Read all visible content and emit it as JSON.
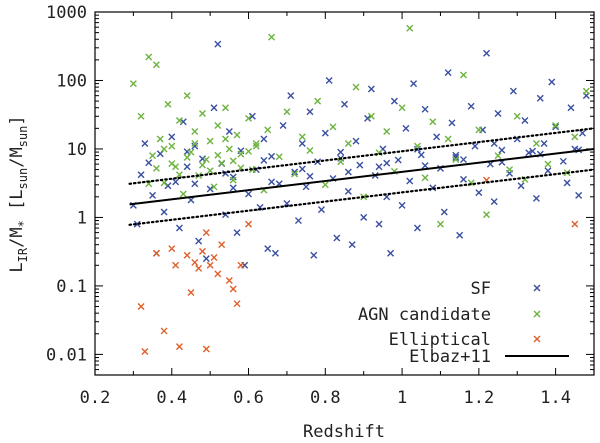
{
  "chart_data": {
    "type": "scatter",
    "title": "",
    "xlabel": "Redshift",
    "ylabel": "L_IR/M_* [L_sun/M_sun]",
    "ylabel_parts": {
      "L": "L",
      "IR": "IR",
      "slash_M": "/M",
      "star": "*",
      "units_open": "[L",
      "sun1": "sun",
      "units_mid": "/M",
      "sun2": "sun",
      "units_close": "]"
    },
    "xlim": [
      0.2,
      1.5
    ],
    "ylim": [
      0.005,
      1000
    ],
    "yscale": "log",
    "xticks": [
      0.2,
      0.4,
      0.6,
      0.8,
      1,
      1.2,
      1.4
    ],
    "xtick_labels": [
      "0.2",
      "0.4",
      "0.6",
      "0.8",
      "1",
      "1.2",
      "1.4"
    ],
    "yticks": [
      0.01,
      0.1,
      1,
      10,
      100,
      1000
    ],
    "ytick_labels": [
      "0.01",
      "0.1",
      "1",
      "10",
      "100",
      "1000"
    ],
    "grid": false,
    "legend_position": "bottom-right",
    "series": [
      {
        "name": "SF",
        "color": "#3a4fa0",
        "marker": "x",
        "data": [
          [
            0.32,
            4.2
          ],
          [
            0.35,
            2.1
          ],
          [
            0.37,
            8.5
          ],
          [
            0.38,
            1.2
          ],
          [
            0.4,
            15
          ],
          [
            0.41,
            3.3
          ],
          [
            0.42,
            0.7
          ],
          [
            0.43,
            25
          ],
          [
            0.44,
            5.5
          ],
          [
            0.45,
            1.8
          ],
          [
            0.46,
            11
          ],
          [
            0.47,
            0.45
          ],
          [
            0.48,
            7.2
          ],
          [
            0.5,
            2.6
          ],
          [
            0.51,
            40
          ],
          [
            0.52,
            340
          ],
          [
            0.53,
            6.1
          ],
          [
            0.54,
            1.1
          ],
          [
            0.55,
            18
          ],
          [
            0.56,
            3.9
          ],
          [
            0.57,
            0.6
          ],
          [
            0.58,
            9.4
          ],
          [
            0.6,
            2.2
          ],
          [
            0.61,
            30
          ],
          [
            0.62,
            5.0
          ],
          [
            0.63,
            1.4
          ],
          [
            0.64,
            14
          ],
          [
            0.65,
            0.35
          ],
          [
            0.66,
            7.8
          ],
          [
            0.68,
            3.1
          ],
          [
            0.69,
            22
          ],
          [
            0.7,
            1.6
          ],
          [
            0.71,
            60
          ],
          [
            0.72,
            4.6
          ],
          [
            0.73,
            0.9
          ],
          [
            0.74,
            12
          ],
          [
            0.75,
            2.8
          ],
          [
            0.76,
            35
          ],
          [
            0.78,
            6.5
          ],
          [
            0.79,
            1.3
          ],
          [
            0.8,
            17
          ],
          [
            0.81,
            100
          ],
          [
            0.82,
            3.7
          ],
          [
            0.83,
            0.5
          ],
          [
            0.84,
            9.0
          ],
          [
            0.85,
            45
          ],
          [
            0.86,
            2.4
          ],
          [
            0.88,
            13
          ],
          [
            0.89,
            5.8
          ],
          [
            0.9,
            1.0
          ],
          [
            0.91,
            28
          ],
          [
            0.92,
            75
          ],
          [
            0.93,
            4.1
          ],
          [
            0.94,
            0.8
          ],
          [
            0.95,
            10
          ],
          [
            0.96,
            2.0
          ],
          [
            0.98,
            50
          ],
          [
            0.99,
            6.9
          ],
          [
            1.0,
            1.5
          ],
          [
            1.01,
            20
          ],
          [
            1.02,
            3.4
          ],
          [
            1.03,
            90
          ],
          [
            1.04,
            0.7
          ],
          [
            1.05,
            8.2
          ],
          [
            1.06,
            38
          ],
          [
            1.08,
            2.7
          ],
          [
            1.09,
            15
          ],
          [
            1.1,
            5.2
          ],
          [
            1.11,
            1.2
          ],
          [
            1.12,
            130
          ],
          [
            1.13,
            24
          ],
          [
            1.14,
            7.5
          ],
          [
            1.15,
            0.55
          ],
          [
            1.16,
            3.6
          ],
          [
            1.18,
            42
          ],
          [
            1.19,
            11
          ],
          [
            1.2,
            2.3
          ],
          [
            1.21,
            19
          ],
          [
            1.22,
            250
          ],
          [
            1.23,
            6.0
          ],
          [
            1.24,
            1.7
          ],
          [
            1.25,
            33
          ],
          [
            1.26,
            9.6
          ],
          [
            1.28,
            4.4
          ],
          [
            1.29,
            70
          ],
          [
            1.3,
            14
          ],
          [
            1.31,
            2.9
          ],
          [
            1.32,
            26
          ],
          [
            1.33,
            8.8
          ],
          [
            1.35,
            1.9
          ],
          [
            1.36,
            55
          ],
          [
            1.37,
            12
          ],
          [
            1.38,
            4.8
          ],
          [
            1.39,
            95
          ],
          [
            1.4,
            21
          ],
          [
            1.42,
            6.6
          ],
          [
            1.43,
            3.2
          ],
          [
            1.44,
            40
          ],
          [
            1.45,
            10
          ],
          [
            1.46,
            2.1
          ],
          [
            1.47,
            17
          ],
          [
            1.48,
            60
          ],
          [
            0.3,
            1.5
          ],
          [
            0.31,
            0.8
          ],
          [
            0.33,
            12
          ],
          [
            0.36,
            0.3
          ],
          [
            0.39,
            2.9
          ],
          [
            0.49,
            0.25
          ],
          [
            0.59,
            0.2
          ],
          [
            0.67,
            0.3
          ],
          [
            0.77,
            0.28
          ],
          [
            0.87,
            0.4
          ],
          [
            0.97,
            0.3
          ],
          [
            0.34,
            6.3
          ],
          [
            0.44,
            9.1
          ],
          [
            0.54,
            4.4
          ],
          [
            0.64,
            6.8
          ],
          [
            0.74,
            5.1
          ],
          [
            0.84,
            7.3
          ],
          [
            0.94,
            5.5
          ],
          [
            1.04,
            9.9
          ],
          [
            1.14,
            8.1
          ],
          [
            1.24,
            12
          ],
          [
            1.34,
            9.3
          ],
          [
            0.46,
            3.1
          ],
          [
            0.56,
            2.7
          ],
          [
            0.66,
            3.3
          ],
          [
            0.76,
            4.0
          ],
          [
            0.86,
            4.6
          ],
          [
            0.96,
            6.2
          ],
          [
            1.06,
            5.7
          ],
          [
            1.16,
            7.0
          ],
          [
            1.26,
            6.4
          ],
          [
            1.36,
            8.4
          ],
          [
            1.46,
            9.7
          ]
        ]
      },
      {
        "name": "AGN candidate",
        "color": "#6db33f",
        "marker": "x",
        "data": [
          [
            0.3,
            90
          ],
          [
            0.32,
            30
          ],
          [
            0.34,
            220
          ],
          [
            0.35,
            8
          ],
          [
            0.36,
            170
          ],
          [
            0.37,
            14
          ],
          [
            0.38,
            3.2
          ],
          [
            0.39,
            45
          ],
          [
            0.4,
            11
          ],
          [
            0.41,
            5.5
          ],
          [
            0.42,
            26
          ],
          [
            0.43,
            2.2
          ],
          [
            0.44,
            60
          ],
          [
            0.45,
            9
          ],
          [
            0.46,
            18
          ],
          [
            0.47,
            4.1
          ],
          [
            0.48,
            33
          ],
          [
            0.49,
            7
          ],
          [
            0.5,
            13
          ],
          [
            0.51,
            2.8
          ],
          [
            0.52,
            22
          ],
          [
            0.53,
            6.2
          ],
          [
            0.54,
            40
          ],
          [
            0.55,
            10
          ],
          [
            0.56,
            3.5
          ],
          [
            0.57,
            16
          ],
          [
            0.58,
            8.4
          ],
          [
            0.6,
            28
          ],
          [
            0.61,
            5
          ],
          [
            0.62,
            12
          ],
          [
            0.64,
            2.5
          ],
          [
            0.65,
            19
          ],
          [
            0.66,
            430
          ],
          [
            0.68,
            7.7
          ],
          [
            0.7,
            35
          ],
          [
            0.72,
            4.3
          ],
          [
            0.74,
            15
          ],
          [
            0.76,
            9.5
          ],
          [
            0.78,
            50
          ],
          [
            0.8,
            3
          ],
          [
            0.82,
            21
          ],
          [
            0.84,
            6.5
          ],
          [
            0.86,
            12
          ],
          [
            0.88,
            80
          ],
          [
            0.9,
            2
          ],
          [
            0.92,
            30
          ],
          [
            0.94,
            8.8
          ],
          [
            0.96,
            18
          ],
          [
            0.98,
            4.7
          ],
          [
            1.0,
            40
          ],
          [
            1.02,
            580
          ],
          [
            1.04,
            11
          ],
          [
            1.06,
            3.8
          ],
          [
            1.08,
            25
          ],
          [
            1.1,
            0.8
          ],
          [
            1.12,
            14
          ],
          [
            1.14,
            7
          ],
          [
            1.16,
            120
          ],
          [
            1.18,
            3.2
          ],
          [
            1.2,
            19
          ],
          [
            1.22,
            1.1
          ],
          [
            1.25,
            8
          ],
          [
            1.28,
            5
          ],
          [
            1.3,
            30
          ],
          [
            1.32,
            3.6
          ],
          [
            1.35,
            12
          ],
          [
            1.38,
            6
          ],
          [
            1.4,
            22
          ],
          [
            1.43,
            4.5
          ],
          [
            1.45,
            15
          ],
          [
            1.48,
            70
          ],
          [
            0.36,
            5.2
          ],
          [
            0.4,
            6.1
          ],
          [
            0.44,
            7.5
          ],
          [
            0.48,
            5.8
          ],
          [
            0.52,
            8.1
          ],
          [
            0.56,
            6.7
          ],
          [
            0.6,
            9.2
          ],
          [
            0.34,
            3.1
          ],
          [
            0.42,
            4.2
          ],
          [
            0.5,
            4.8
          ],
          [
            0.58,
            5.3
          ],
          [
            0.46,
            12
          ],
          [
            0.54,
            14
          ],
          [
            0.38,
            10
          ],
          [
            0.62,
            11
          ]
        ]
      },
      {
        "name": "Elliptical",
        "color": "#e0602a",
        "marker": "x",
        "data": [
          [
            0.32,
            0.05
          ],
          [
            0.33,
            0.011
          ],
          [
            0.36,
            0.3
          ],
          [
            0.38,
            0.022
          ],
          [
            0.4,
            0.35
          ],
          [
            0.41,
            0.2
          ],
          [
            0.42,
            0.013
          ],
          [
            0.44,
            0.28
          ],
          [
            0.45,
            0.08
          ],
          [
            0.46,
            0.22
          ],
          [
            0.47,
            0.18
          ],
          [
            0.48,
            0.32
          ],
          [
            0.49,
            0.012
          ],
          [
            0.5,
            0.2
          ],
          [
            0.51,
            0.26
          ],
          [
            0.52,
            0.15
          ],
          [
            0.53,
            0.4
          ],
          [
            0.55,
            0.12
          ],
          [
            0.56,
            0.09
          ],
          [
            0.57,
            0.055
          ],
          [
            0.58,
            0.2
          ],
          [
            0.6,
            0.8
          ],
          [
            0.49,
            0.6
          ],
          [
            1.22,
            3.5
          ],
          [
            1.45,
            0.8
          ]
        ]
      }
    ],
    "lines": [
      {
        "name": "Elbaz+11",
        "style": "solid",
        "color": "#000000",
        "x": [
          0.29,
          1.5
        ],
        "y": [
          1.55,
          10
        ]
      },
      {
        "name": "",
        "style": "dotted",
        "color": "#000000",
        "x": [
          0.29,
          1.5
        ],
        "y": [
          3.1,
          20
        ]
      },
      {
        "name": "",
        "style": "dotted",
        "color": "#000000",
        "x": [
          0.29,
          1.5
        ],
        "y": [
          0.78,
          5
        ]
      }
    ],
    "legend": [
      {
        "label": "SF",
        "color": "#3a4fa0",
        "kind": "marker"
      },
      {
        "label": "AGN candidate",
        "color": "#6db33f",
        "kind": "marker"
      },
      {
        "label": "Elliptical",
        "color": "#e0602a",
        "kind": "marker"
      },
      {
        "label": "Elbaz+11",
        "color": "#000000",
        "kind": "line"
      }
    ]
  }
}
